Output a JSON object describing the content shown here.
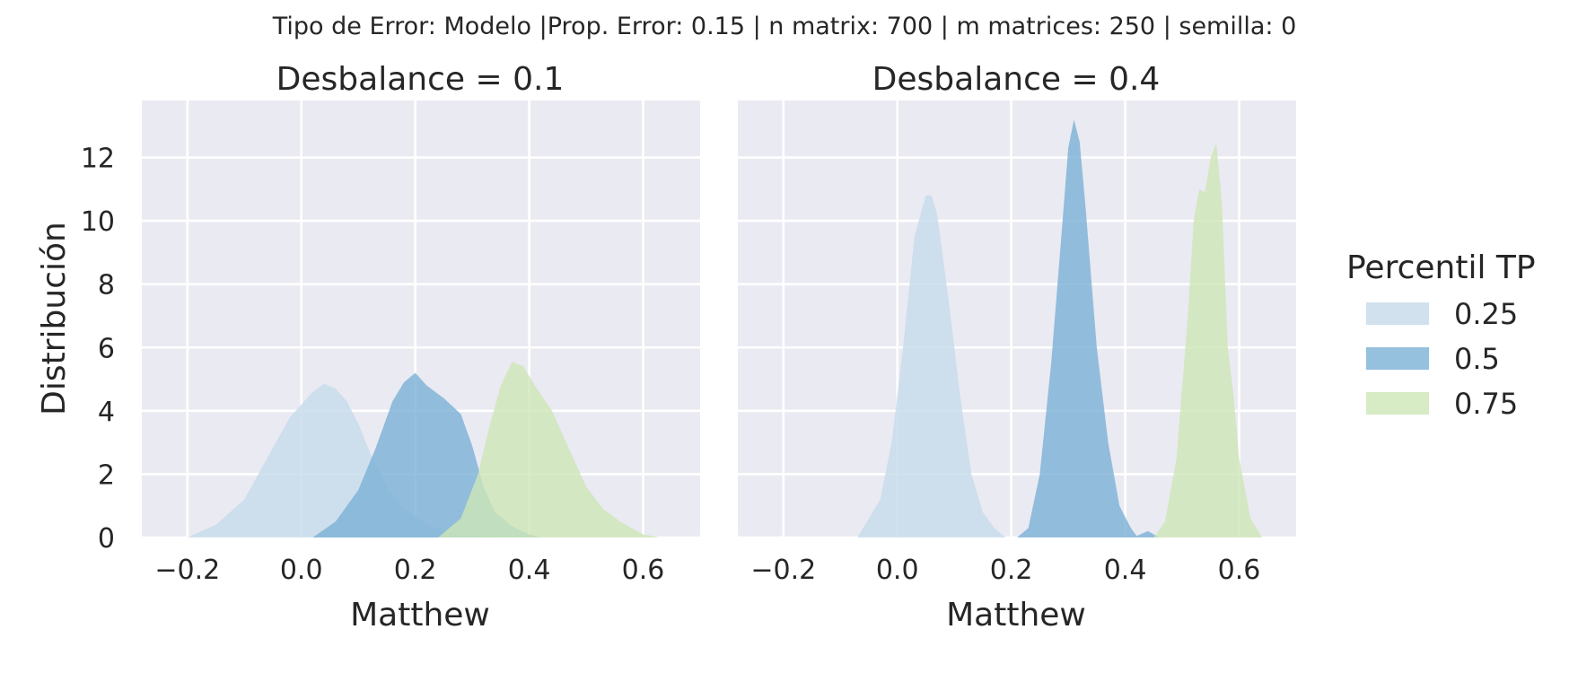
{
  "figure": {
    "suptitle": "Tipo de Error: Modelo |Prop. Error: 0.15 | n matrix: 700 | m matrices: 250 | semilla: 0",
    "background": "#ffffff",
    "panel_background": "#eaeaf2"
  },
  "chart_data": [
    {
      "type": "area",
      "title": "Desbalance = 0.1",
      "xlabel": "Matthew",
      "ylabel": "Distribución",
      "xlim": [
        -0.28,
        0.7
      ],
      "ylim": [
        0,
        13.8
      ],
      "xticks": [
        -0.2,
        0.0,
        0.2,
        0.4,
        0.6
      ],
      "xtick_labels": [
        "−0.2",
        "0.0",
        "0.2",
        "0.4",
        "0.6"
      ],
      "yticks": [
        0,
        2,
        4,
        6,
        8,
        10,
        12
      ],
      "ytick_labels": [
        "0",
        "2",
        "4",
        "6",
        "8",
        "10",
        "12"
      ],
      "grid": true,
      "series": [
        {
          "name": "0.25",
          "color": "#c6dbea",
          "x": [
            -0.2,
            -0.15,
            -0.1,
            -0.06,
            -0.02,
            0.0,
            0.02,
            0.04,
            0.06,
            0.08,
            0.1,
            0.12,
            0.15,
            0.18,
            0.22,
            0.26,
            0.3,
            0.34
          ],
          "y": [
            0.0,
            0.4,
            1.2,
            2.5,
            3.8,
            4.2,
            4.6,
            4.85,
            4.7,
            4.3,
            3.6,
            2.7,
            1.6,
            0.9,
            0.4,
            0.15,
            0.05,
            0.0
          ]
        },
        {
          "name": "0.5",
          "color": "#7ab0d6",
          "x": [
            0.02,
            0.06,
            0.1,
            0.13,
            0.16,
            0.18,
            0.2,
            0.22,
            0.25,
            0.28,
            0.3,
            0.32,
            0.34,
            0.37,
            0.4,
            0.42
          ],
          "y": [
            0.0,
            0.5,
            1.5,
            2.8,
            4.3,
            4.9,
            5.2,
            4.8,
            4.4,
            3.9,
            2.9,
            1.6,
            0.8,
            0.35,
            0.1,
            0.0
          ]
        },
        {
          "name": "0.75",
          "color": "#cde6b7",
          "x": [
            0.24,
            0.28,
            0.31,
            0.33,
            0.35,
            0.37,
            0.39,
            0.41,
            0.44,
            0.47,
            0.5,
            0.53,
            0.56,
            0.6,
            0.63
          ],
          "y": [
            0.0,
            0.6,
            2.0,
            3.5,
            4.8,
            5.55,
            5.4,
            4.8,
            4.0,
            2.8,
            1.6,
            0.9,
            0.5,
            0.1,
            0.0
          ]
        }
      ]
    },
    {
      "type": "area",
      "title": "Desbalance = 0.4",
      "xlabel": "Matthew",
      "ylabel": "",
      "xlim": [
        -0.28,
        0.7
      ],
      "ylim": [
        0,
        13.8
      ],
      "xticks": [
        -0.2,
        0.0,
        0.2,
        0.4,
        0.6
      ],
      "xtick_labels": [
        "−0.2",
        "0.0",
        "0.2",
        "0.4",
        "0.6"
      ],
      "yticks": [
        0,
        2,
        4,
        6,
        8,
        10,
        12
      ],
      "grid": true,
      "series": [
        {
          "name": "0.25",
          "color": "#c6dbea",
          "x": [
            -0.07,
            -0.05,
            -0.03,
            -0.01,
            0.01,
            0.03,
            0.05,
            0.06,
            0.07,
            0.09,
            0.11,
            0.13,
            0.15,
            0.17,
            0.19
          ],
          "y": [
            0.0,
            0.6,
            1.2,
            3.0,
            6.0,
            9.5,
            10.8,
            10.8,
            10.2,
            7.5,
            4.5,
            2.0,
            0.8,
            0.3,
            0.0
          ]
        },
        {
          "name": "0.5",
          "color": "#7ab0d6",
          "x": [
            0.21,
            0.23,
            0.25,
            0.27,
            0.29,
            0.3,
            0.31,
            0.32,
            0.33,
            0.35,
            0.37,
            0.39,
            0.41,
            0.42,
            0.44,
            0.46
          ],
          "y": [
            0.0,
            0.3,
            2.0,
            5.5,
            10.0,
            12.3,
            13.2,
            12.5,
            10.5,
            6.0,
            3.0,
            1.0,
            0.3,
            0.05,
            0.2,
            0.0
          ]
        },
        {
          "name": "0.75",
          "color": "#cde6b7",
          "x": [
            0.45,
            0.47,
            0.49,
            0.51,
            0.52,
            0.53,
            0.54,
            0.55,
            0.56,
            0.57,
            0.58,
            0.59,
            0.6,
            0.62,
            0.64
          ],
          "y": [
            0.0,
            0.5,
            2.5,
            7.0,
            10.0,
            11.0,
            10.9,
            12.0,
            12.45,
            10.5,
            6.0,
            4.5,
            2.5,
            0.6,
            0.0
          ]
        }
      ]
    }
  ],
  "legend": {
    "title": "Percentil TP",
    "placement": "right",
    "items": [
      {
        "label": "0.25",
        "color": "#c6dbea"
      },
      {
        "label": "0.5",
        "color": "#7ab0d6"
      },
      {
        "label": "0.75",
        "color": "#cde6b7"
      }
    ]
  }
}
